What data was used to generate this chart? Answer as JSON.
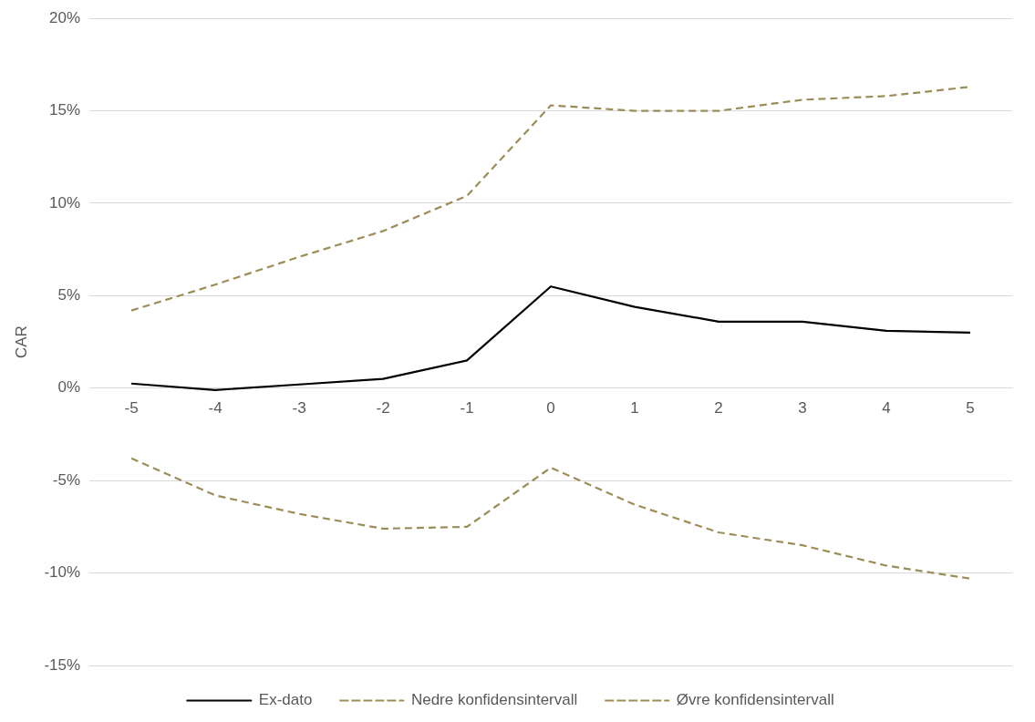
{
  "chart_data": {
    "type": "line",
    "ylabel": "CAR",
    "categories": [
      "-5",
      "-4",
      "-3",
      "-2",
      "-1",
      "0",
      "1",
      "2",
      "3",
      "4",
      "5"
    ],
    "series": [
      {
        "name": "Ex-dato",
        "color": "#000000",
        "line_style": "solid",
        "values": [
          0.25,
          -0.1,
          0.2,
          0.5,
          1.5,
          5.5,
          4.4,
          3.6,
          3.6,
          3.1,
          3.0
        ]
      },
      {
        "name": "Nedre konfidensintervall",
        "color": "#9c8d57",
        "line_style": "dashed",
        "values": [
          -3.8,
          -5.8,
          -6.8,
          -7.6,
          -7.5,
          -4.3,
          -6.3,
          -7.8,
          -8.5,
          -9.6,
          -10.3
        ]
      },
      {
        "name": "Øvre konfidensintervall",
        "color": "#9c8d57",
        "line_style": "dashed",
        "values": [
          4.2,
          5.6,
          7.1,
          8.5,
          10.4,
          15.3,
          15.0,
          15.0,
          15.6,
          15.8,
          16.3
        ]
      }
    ],
    "ylim": [
      -15,
      20
    ],
    "yticks": [
      {
        "value": -15,
        "label": "-15%"
      },
      {
        "value": -10,
        "label": "-10%"
      },
      {
        "value": -5,
        "label": "-5%"
      },
      {
        "value": 0,
        "label": "0%"
      },
      {
        "value": 5,
        "label": "5%"
      },
      {
        "value": 10,
        "label": "10%"
      },
      {
        "value": 15,
        "label": "15%"
      },
      {
        "value": 20,
        "label": "20%"
      }
    ],
    "grid": "y",
    "legend": "bottom",
    "marker": "none"
  }
}
